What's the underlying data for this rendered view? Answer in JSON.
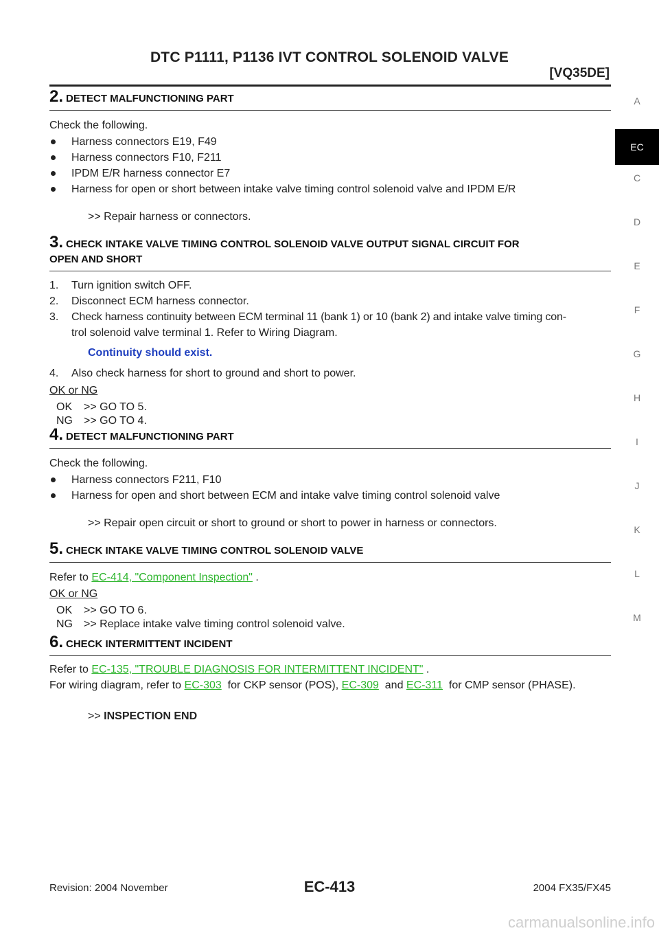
{
  "header": {
    "title": "DTC P1111, P1136 IVT CONTROL SOLENOID VALVE",
    "subtitle": "[VQ35DE]"
  },
  "side_index": [
    "A",
    "EC",
    "C",
    "D",
    "E",
    "F",
    "G",
    "H",
    "I",
    "J",
    "K",
    "L",
    "M"
  ],
  "step2": {
    "num": "2.",
    "head": "DETECT MALFUNCTIONING PART",
    "intro": "Check the following.",
    "bullets": [
      "Harness connectors E19, F49",
      "Harness connectors F10, F211",
      "IPDM E/R harness connector E7",
      "Harness for open or short between intake valve timing control solenoid valve and IPDM E/R"
    ],
    "action": ">> Repair harness or connectors."
  },
  "step3": {
    "num": "3.",
    "head_l1": "CHECK INTAKE VALVE TIMING CONTROL SOLENOID VALVE OUTPUT SIGNAL CIRCUIT FOR",
    "head_l2": "OPEN AND SHORT",
    "items": [
      {
        "n": "1.",
        "t": "Turn ignition switch OFF."
      },
      {
        "n": "2.",
        "t": "Disconnect ECM harness connector."
      },
      {
        "n": "3.",
        "t": "Check harness continuity between ECM terminal 11 (bank 1) or 10 (bank 2) and intake valve timing con-"
      }
    ],
    "item3_cont": "trol solenoid valve terminal 1. Refer to Wiring Diagram.",
    "spec": "Continuity should exist.",
    "item4_n": "4.",
    "item4_t": "Also check harness for short to ground and short to power.",
    "ok_ng": "OK or NG",
    "ok_k": "OK",
    "ok_v": ">> GO TO 5.",
    "ng_k": "NG",
    "ng_v": ">> GO TO 4."
  },
  "step4": {
    "num": "4.",
    "head": "DETECT MALFUNCTIONING PART",
    "intro": "Check the following.",
    "bullets": [
      "Harness connectors F211, F10",
      "Harness for open and short between ECM and intake valve timing control solenoid valve"
    ],
    "action": ">> Repair open circuit or short to ground or short to power in harness or connectors."
  },
  "step5": {
    "num": "5.",
    "head": "CHECK INTAKE VALVE TIMING CONTROL SOLENOID VALVE",
    "refer_pre": "Refer to ",
    "refer_link": "EC-414, \"Component Inspection\"",
    "refer_post": " .",
    "ok_ng": "OK or NG",
    "ok_k": "OK",
    "ok_v": ">> GO TO 6.",
    "ng_k": "NG",
    "ng_v": ">> Replace intake valve timing control solenoid valve."
  },
  "step6": {
    "num": "6.",
    "head": "CHECK INTERMITTENT INCIDENT",
    "refer_pre": "Refer to ",
    "refer_link": "EC-135, \"TROUBLE DIAGNOSIS FOR INTERMITTENT INCIDENT\"",
    "refer_post": " .",
    "wiring_pre": "For wiring diagram, refer to ",
    "link_a": "EC-303",
    "mid_a": "  for CKP sensor (POS), ",
    "link_b": "EC-309",
    "mid_b": "  and ",
    "link_c": "EC-311",
    "tail": "  for CMP sensor (PHASE).",
    "end_prefix": ">> ",
    "end_bold": "INSPECTION END"
  },
  "footer": {
    "revision": "Revision: 2004 November",
    "page": "EC-413",
    "model": "2004 FX35/FX45"
  },
  "watermark": "carmanualsonline.info"
}
